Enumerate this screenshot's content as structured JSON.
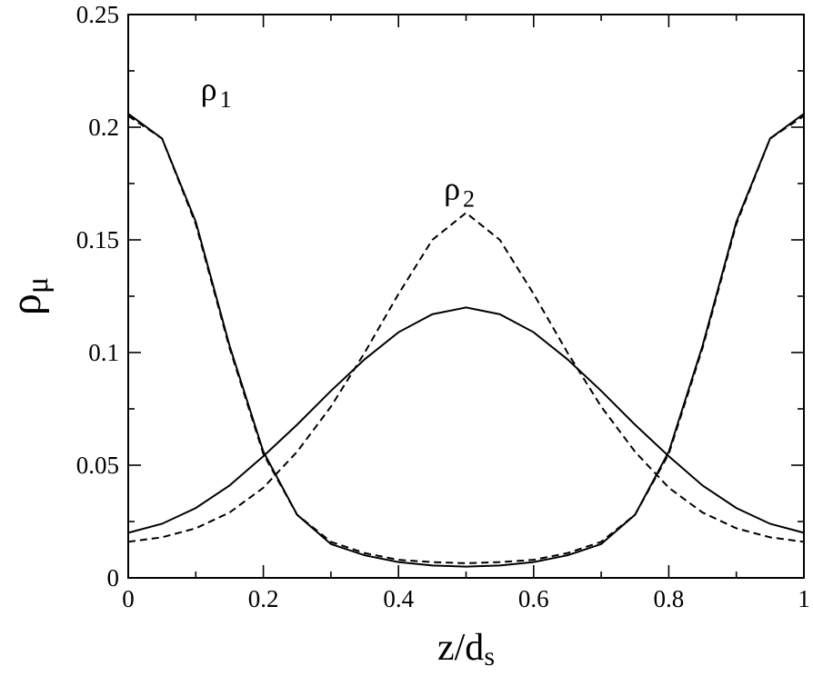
{
  "chart_data": {
    "type": "line",
    "title": "",
    "xlabel": "z/d",
    "xlabel_sub": "s",
    "ylabel": "ρ",
    "ylabel_sub": "μ",
    "xlim": [
      0,
      1
    ],
    "ylim": [
      0,
      0.25
    ],
    "xticks": [
      "0",
      "0.2",
      "0.4",
      "0.6",
      "0.8",
      "1"
    ],
    "yticks": [
      "0",
      "0.05",
      "0.1",
      "0.15",
      "0.2",
      "0.25"
    ],
    "grid": false,
    "annotations": [
      {
        "text": "ρ",
        "sub": "1",
        "x": 0.13,
        "y": 0.212
      },
      {
        "text": "ρ",
        "sub": "2",
        "x": 0.49,
        "y": 0.168
      }
    ],
    "series": [
      {
        "style": "solid",
        "x": [
          0,
          0.05,
          0.1,
          0.15,
          0.2,
          0.25,
          0.3,
          0.35,
          0.4,
          0.45,
          0.5,
          0.55,
          0.6,
          0.65,
          0.7,
          0.75,
          0.8,
          0.85,
          0.9,
          0.95,
          1.0
        ],
        "values": [
          0.206,
          0.195,
          0.158,
          0.103,
          0.056,
          0.028,
          0.015,
          0.01,
          0.007,
          0.0055,
          0.005,
          0.0055,
          0.007,
          0.01,
          0.015,
          0.028,
          0.056,
          0.103,
          0.158,
          0.195,
          0.206
        ]
      },
      {
        "style": "dashed",
        "x": [
          0,
          0.05,
          0.1,
          0.15,
          0.2,
          0.25,
          0.3,
          0.35,
          0.4,
          0.45,
          0.5,
          0.55,
          0.6,
          0.65,
          0.7,
          0.75,
          0.8,
          0.85,
          0.9,
          0.95,
          1.0
        ],
        "values": [
          0.205,
          0.195,
          0.157,
          0.102,
          0.055,
          0.028,
          0.016,
          0.011,
          0.008,
          0.007,
          0.0065,
          0.007,
          0.008,
          0.011,
          0.016,
          0.028,
          0.055,
          0.102,
          0.157,
          0.195,
          0.205
        ]
      },
      {
        "style": "solid",
        "x": [
          0,
          0.05,
          0.1,
          0.15,
          0.2,
          0.25,
          0.3,
          0.35,
          0.4,
          0.45,
          0.5,
          0.55,
          0.6,
          0.65,
          0.7,
          0.75,
          0.8,
          0.85,
          0.9,
          0.95,
          1.0
        ],
        "values": [
          0.02,
          0.024,
          0.031,
          0.041,
          0.054,
          0.068,
          0.083,
          0.097,
          0.109,
          0.117,
          0.12,
          0.117,
          0.109,
          0.097,
          0.083,
          0.068,
          0.054,
          0.041,
          0.031,
          0.024,
          0.02
        ]
      },
      {
        "style": "dashed",
        "x": [
          0,
          0.05,
          0.1,
          0.15,
          0.2,
          0.25,
          0.3,
          0.35,
          0.4,
          0.45,
          0.5,
          0.55,
          0.6,
          0.65,
          0.7,
          0.75,
          0.8,
          0.85,
          0.9,
          0.95,
          1.0
        ],
        "values": [
          0.016,
          0.018,
          0.022,
          0.029,
          0.04,
          0.056,
          0.076,
          0.1,
          0.126,
          0.15,
          0.162,
          0.15,
          0.126,
          0.1,
          0.076,
          0.056,
          0.04,
          0.029,
          0.022,
          0.018,
          0.016
        ]
      }
    ]
  }
}
